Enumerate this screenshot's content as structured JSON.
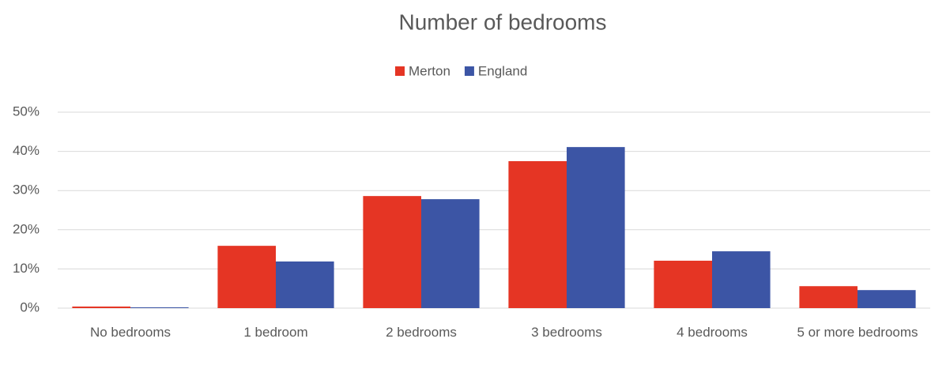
{
  "chart_data": {
    "type": "bar",
    "title": "Number of bedrooms",
    "categories": [
      "No bedrooms",
      "1 bedroom",
      "2 bedrooms",
      "3 bedrooms",
      "4 bedrooms",
      "5 or more bedrooms"
    ],
    "series": [
      {
        "name": "Merton",
        "color": "#e53524",
        "values": [
          0.4,
          15.9,
          28.6,
          37.5,
          12.1,
          5.6
        ]
      },
      {
        "name": "England",
        "color": "#3c55a5",
        "values": [
          0.2,
          11.9,
          27.8,
          41.1,
          14.5,
          4.6
        ]
      }
    ],
    "ylim": [
      0,
      50
    ],
    "yticks": [
      {
        "value": 0,
        "label": "0%"
      },
      {
        "value": 10,
        "label": "10%"
      },
      {
        "value": 20,
        "label": "20%"
      },
      {
        "value": 30,
        "label": "30%"
      },
      {
        "value": 40,
        "label": "40%"
      },
      {
        "value": 50,
        "label": "50%"
      }
    ],
    "grid": true,
    "legend": "top"
  }
}
